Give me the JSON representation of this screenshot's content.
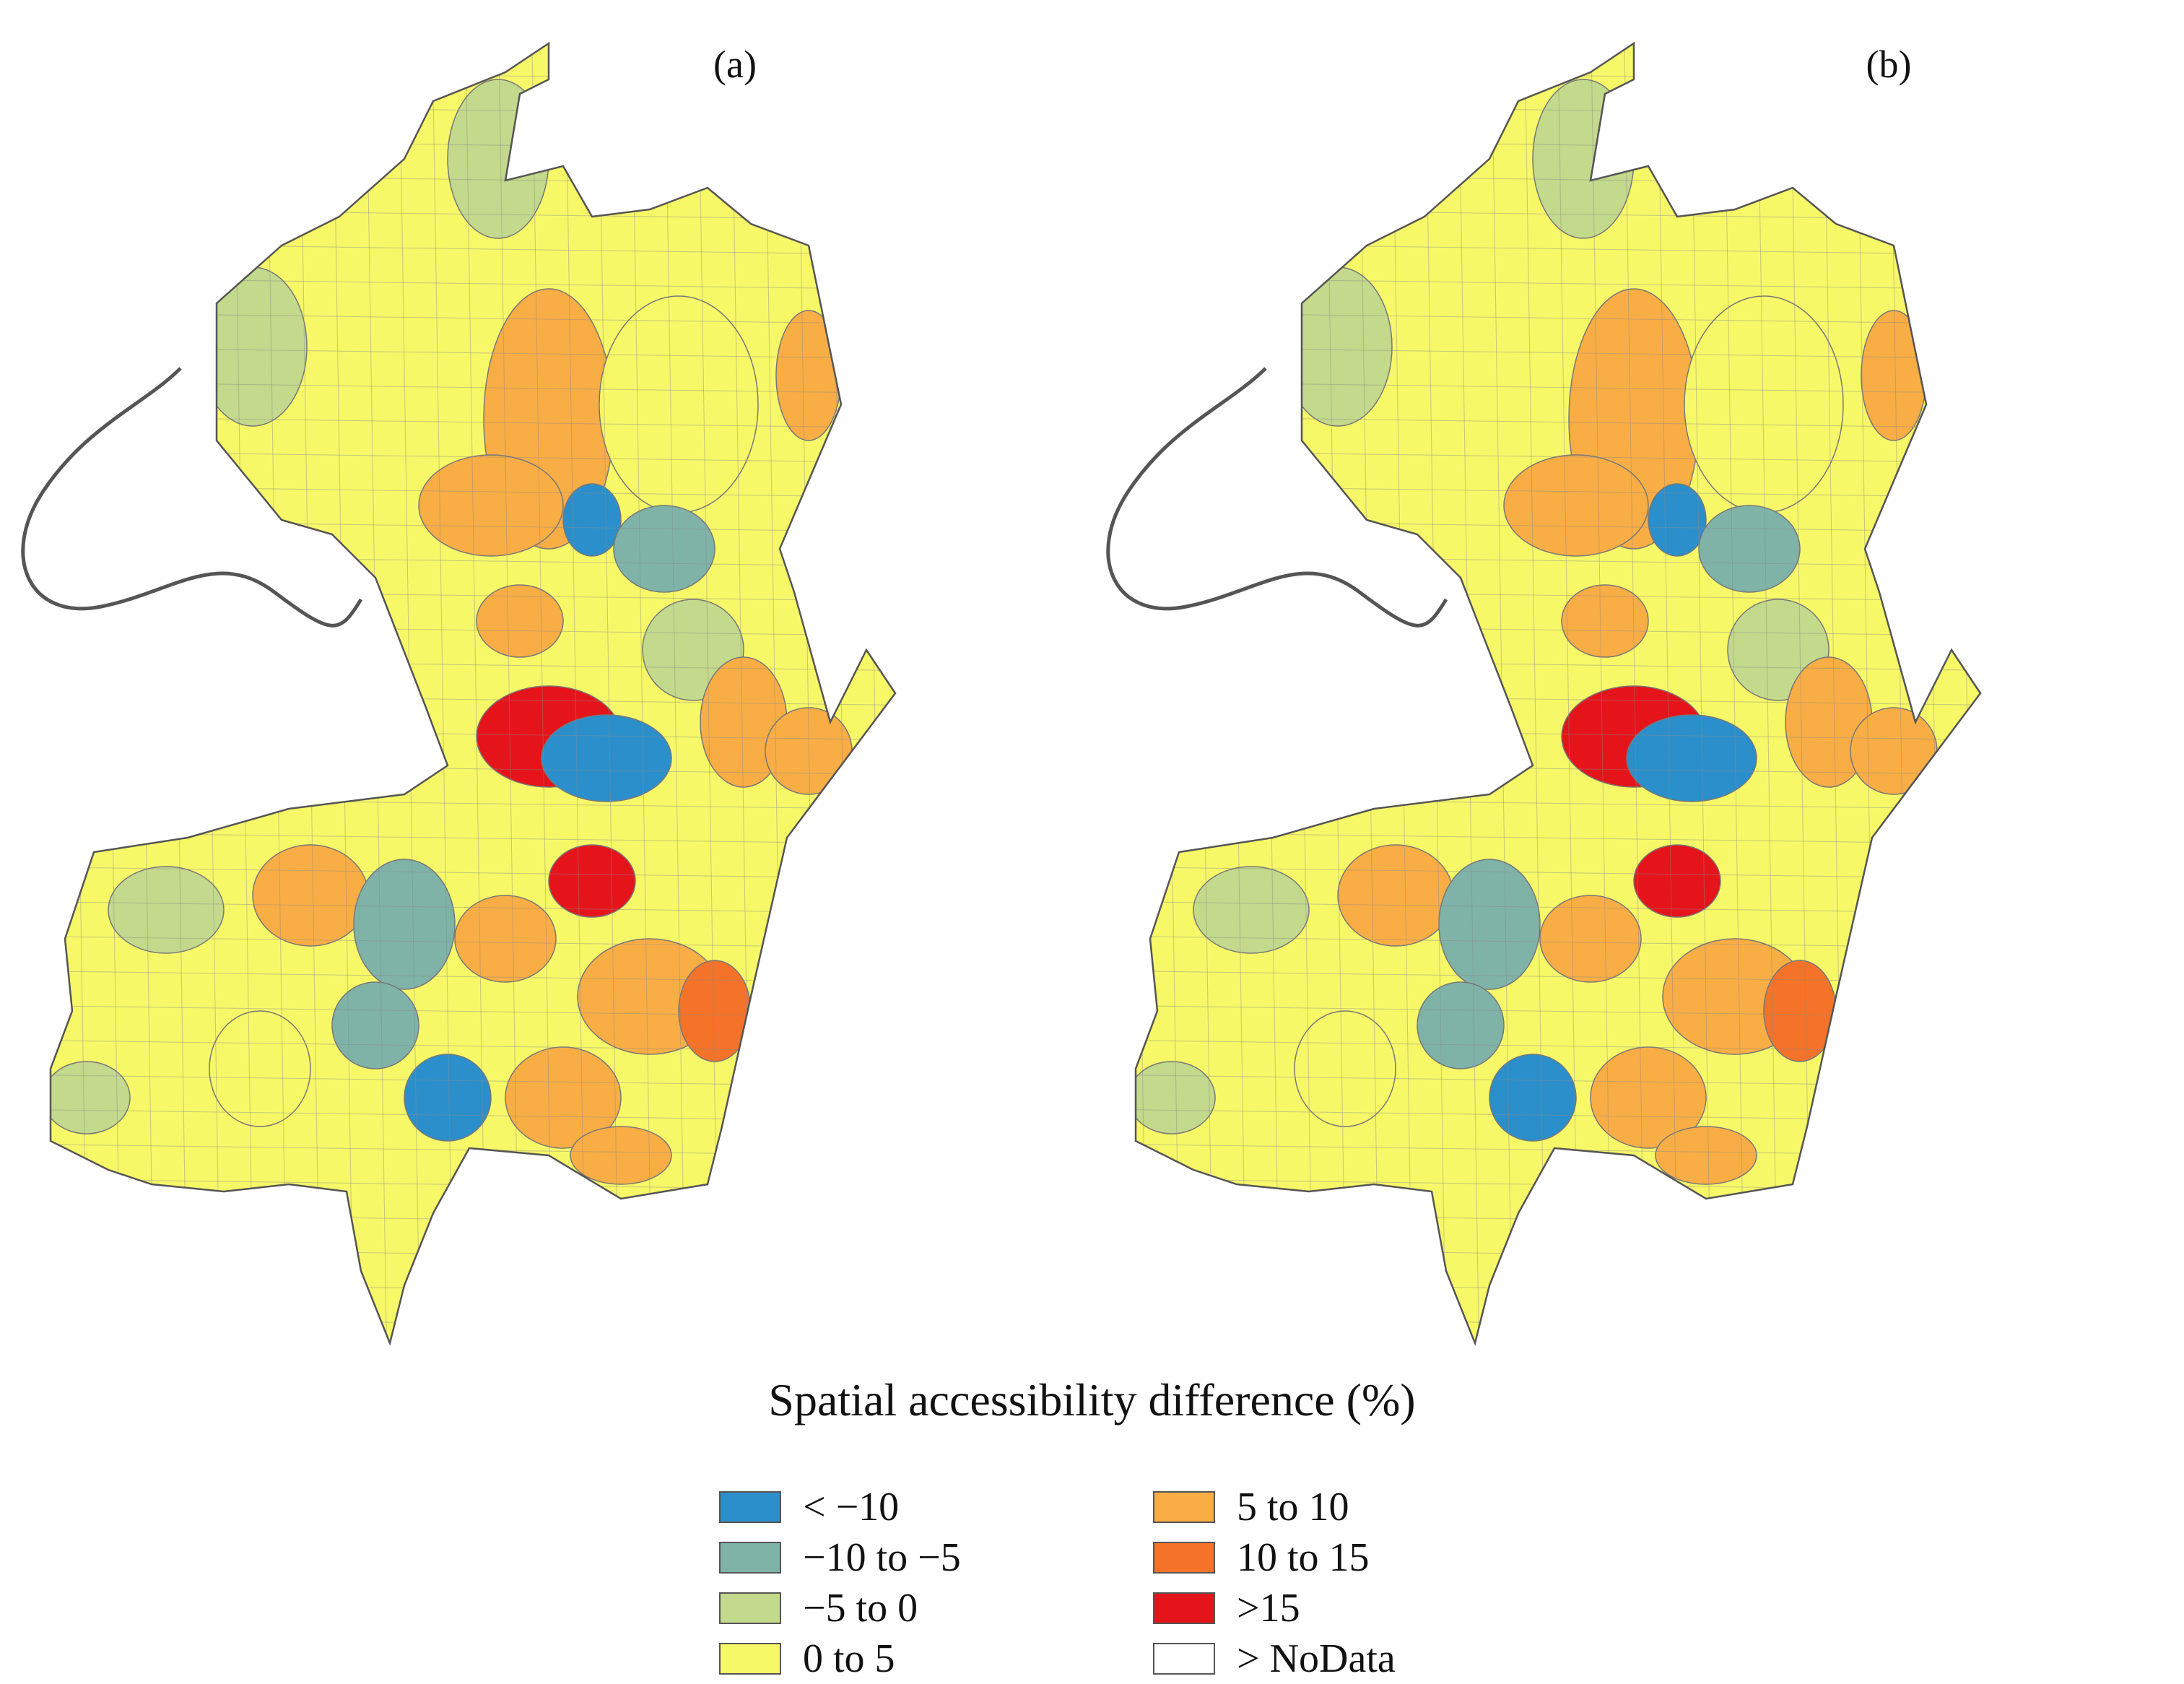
{
  "panels": [
    {
      "label": "(a)"
    },
    {
      "label": "(b)"
    }
  ],
  "legend": {
    "title": "Spatial accessibility difference (%)",
    "classes": [
      {
        "label": "< −10",
        "color": "#2b8fcb"
      },
      {
        "label": "−10 to −5",
        "color": "#7fb3a8"
      },
      {
        "label": "−5 to 0",
        "color": "#c3d98c"
      },
      {
        "label": "0 to 5",
        "color": "#f7f868"
      },
      {
        "label": "5 to 10",
        "color": "#f9ad45"
      },
      {
        "label": "10 to 15",
        "color": "#f47329"
      },
      {
        "label": ">15",
        "color": "#e5141a"
      },
      {
        "label": "> NoData",
        "color": "#ffffff"
      }
    ]
  }
}
